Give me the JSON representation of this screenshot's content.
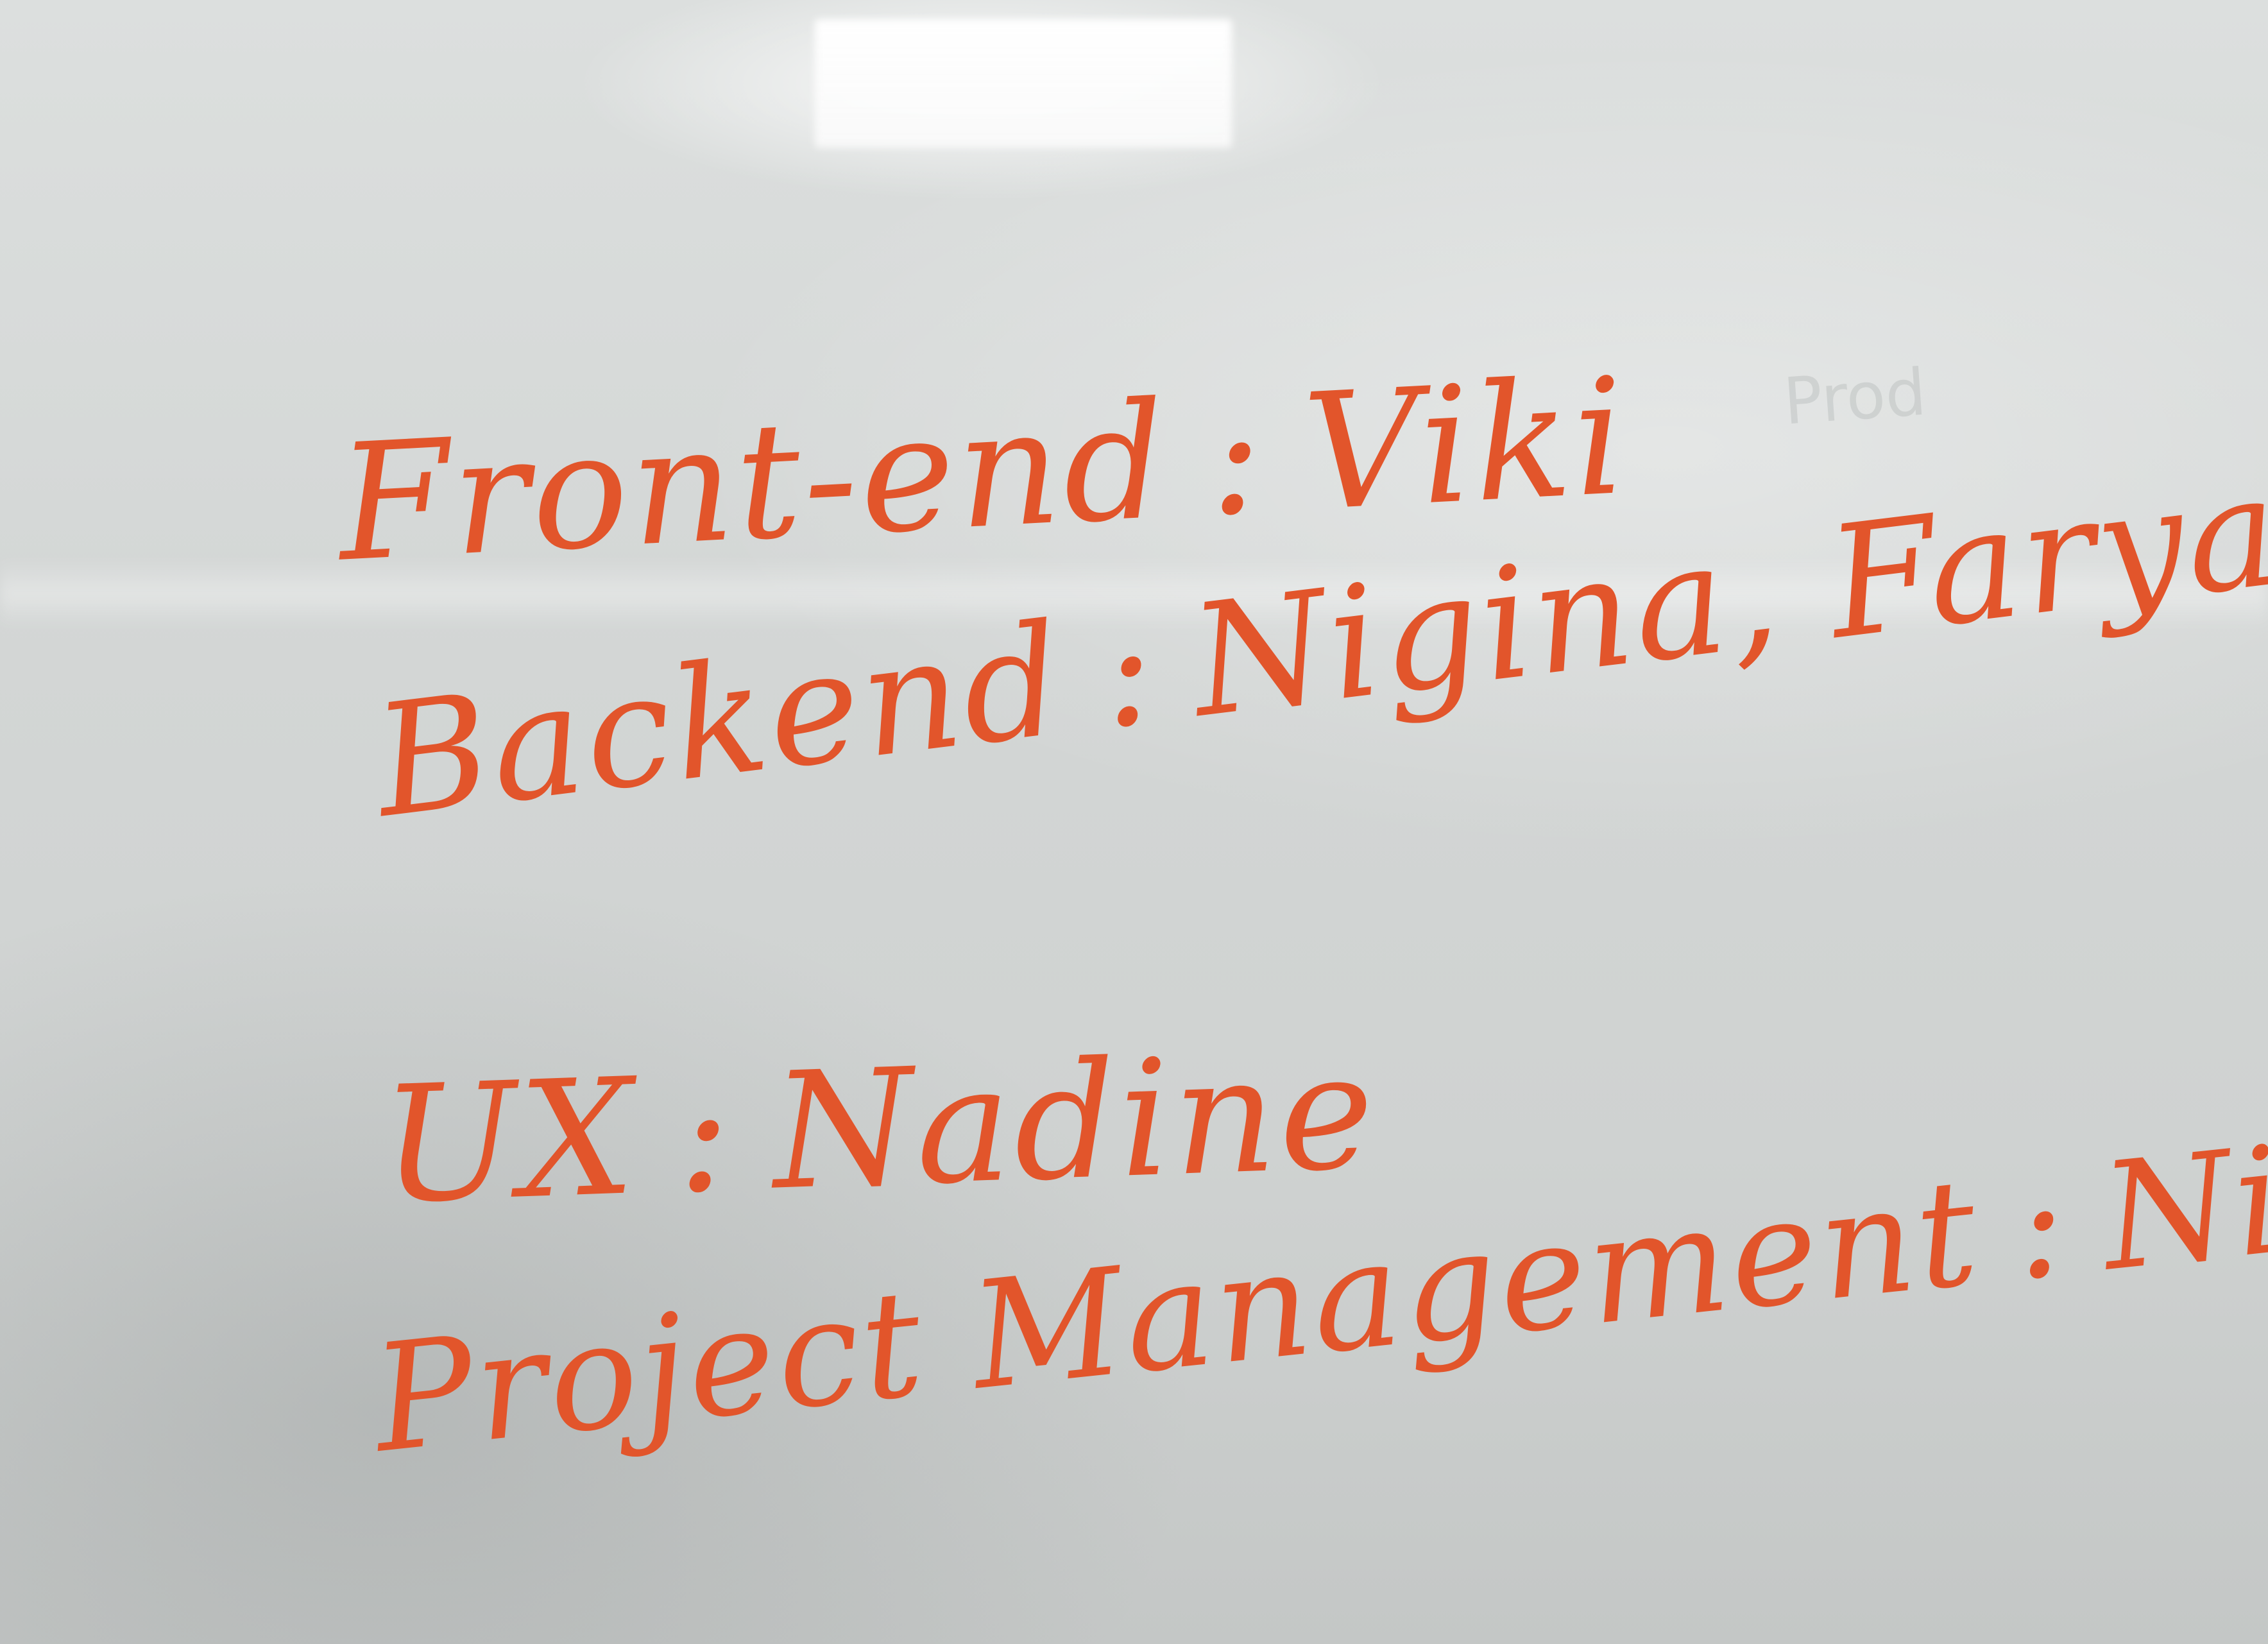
{
  "whiteboard": {
    "ink_color": "#e2552b",
    "board_color": "#d6d9d8",
    "faint_text": "Prod",
    "roles": [
      {
        "role": "Front-end",
        "separator": ":",
        "names": "Viki"
      },
      {
        "role": "Backend",
        "separator": ":",
        "names": "Nigina, Faryal, Nitisha"
      },
      {
        "role": "UX",
        "separator": ":",
        "names": "Nadine"
      },
      {
        "role": "Project Management",
        "separator": ":",
        "names": "Nisha"
      }
    ]
  }
}
